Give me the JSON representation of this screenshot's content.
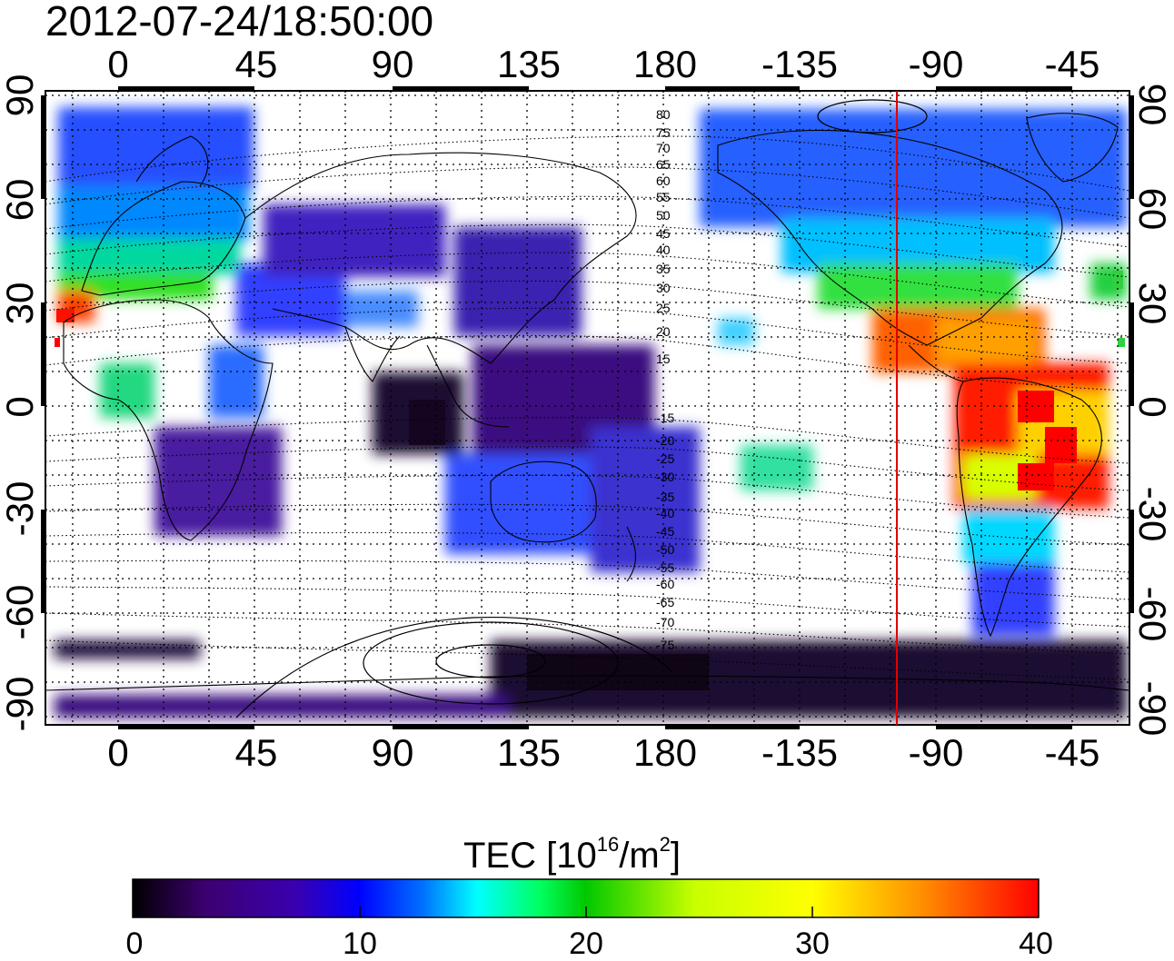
{
  "map": {
    "timestamp": "2012-07-24/18:50:00",
    "top_lon_ticks": [
      "0",
      "45",
      "90",
      "135",
      "180",
      "-135",
      "-90",
      "-45"
    ],
    "bottom_lon_ticks": [
      "0",
      "45",
      "90",
      "135",
      "180",
      "-135",
      "-90",
      "-45"
    ],
    "left_lat_ticks": [
      "90",
      "60",
      "30",
      "0",
      "-30",
      "-60",
      "-90"
    ],
    "right_lat_ticks": [
      "90",
      "60",
      "30",
      "0",
      "-30",
      "-60",
      "-90"
    ],
    "lon_range": [
      -22,
      332
    ],
    "lat_range": [
      -92,
      92
    ],
    "contour_labels": [
      "80",
      "75",
      "70",
      "65",
      "60",
      "55",
      "50",
      "45",
      "40",
      "35",
      "30",
      "25",
      "20",
      "15",
      "-15",
      "-20",
      "-25",
      "-30",
      "-35",
      "-40",
      "-45",
      "-50",
      "-55",
      "-60",
      "-65",
      "-70",
      "-75"
    ],
    "terminator_line_lon": -104,
    "terminator_color": "#e00000"
  },
  "colorbar": {
    "title": "TEC  [10",
    "title_sup1": "16",
    "title_mid": "/m",
    "title_sup2": "2",
    "title_end": "]",
    "ticks": [
      "0",
      "10",
      "20",
      "30",
      "40"
    ],
    "range": [
      0,
      40
    ],
    "colors": [
      "#000000",
      "#3c0070",
      "#3a00b0",
      "#0000ff",
      "#0080ff",
      "#00ffff",
      "#00ff60",
      "#00c800",
      "#c8ff00",
      "#ffff00",
      "#ff9600",
      "#ff0000"
    ]
  }
}
